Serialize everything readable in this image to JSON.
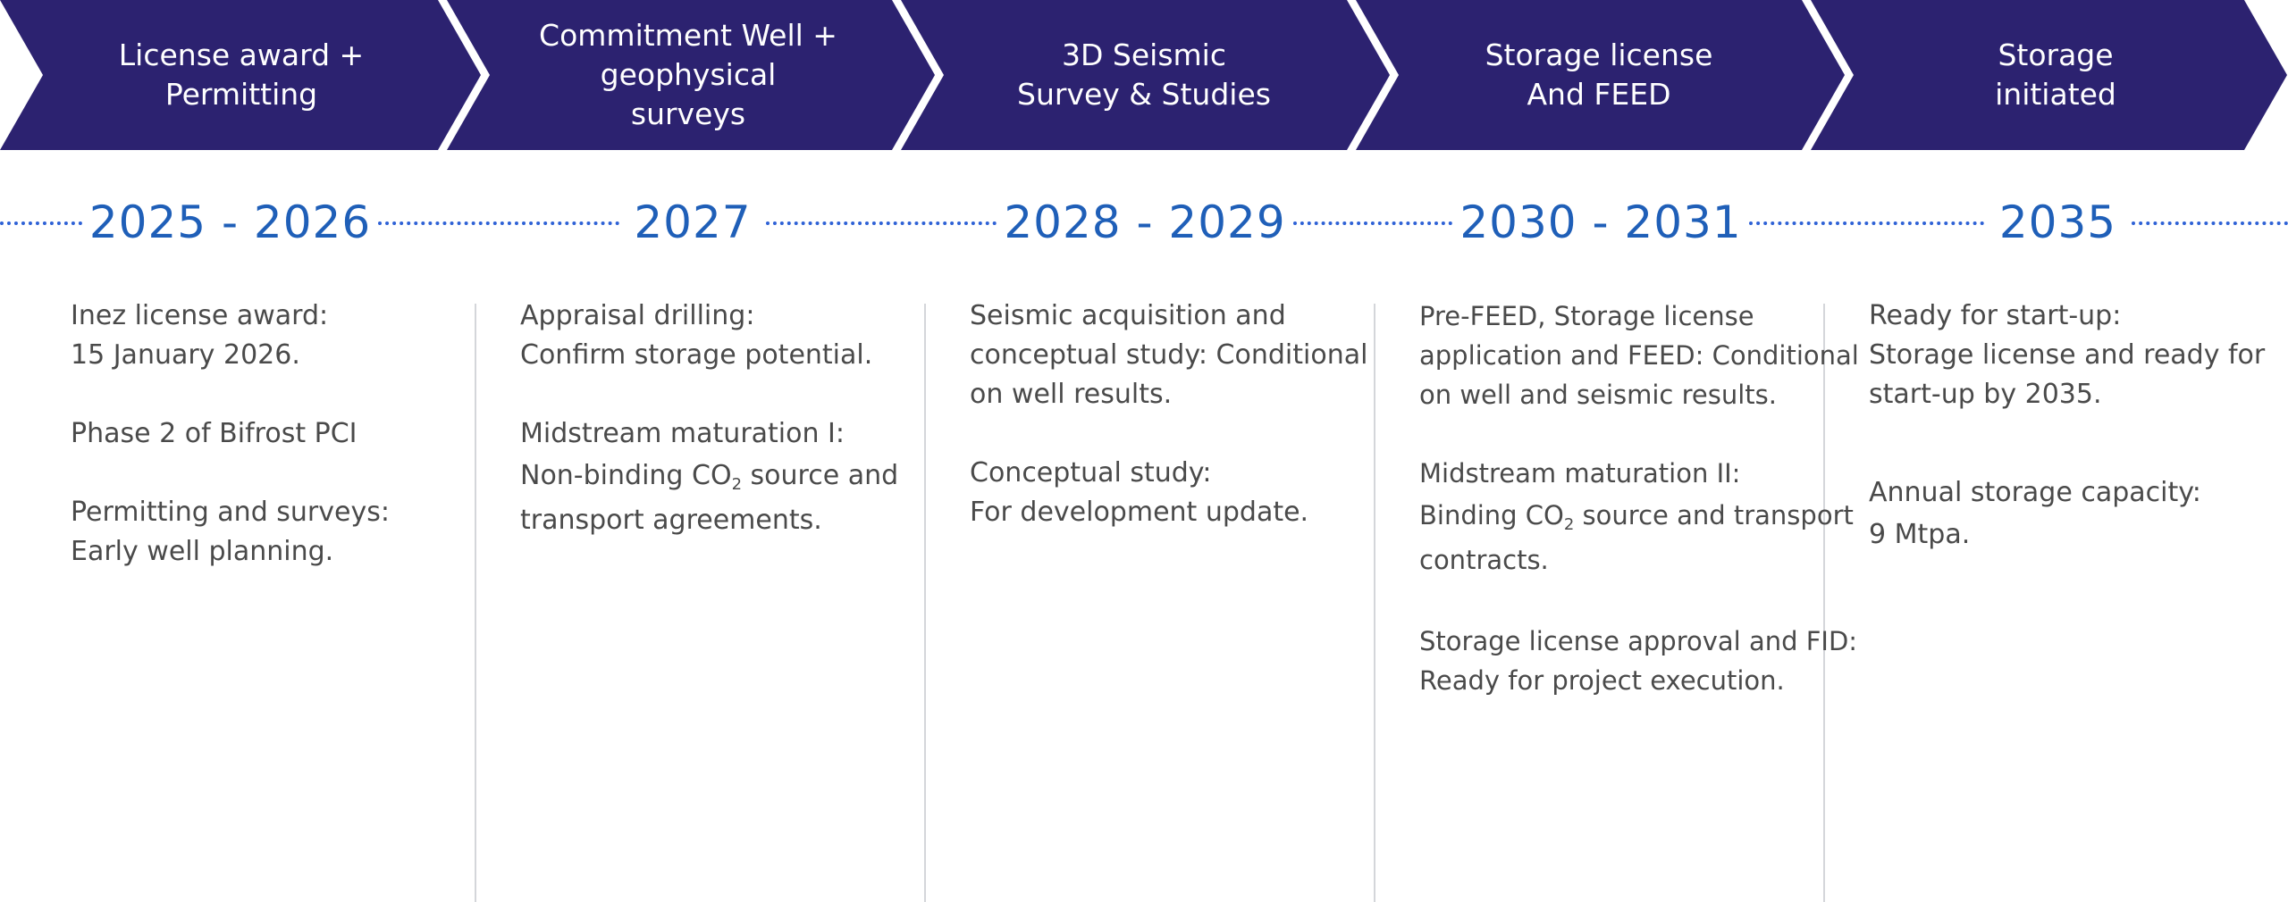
{
  "header_color": "#2c2270",
  "accent_color": "#1f5fb8",
  "stages": [
    {
      "label": "License award + Permitting"
    },
    {
      "label": "Commitment Well +\ngeophysical\nsurveys"
    },
    {
      "label": "3D Seismic\nSurvey & Studies"
    },
    {
      "label": "Storage license\nAnd FEED"
    },
    {
      "label": "Storage\ninitiated"
    }
  ],
  "years": [
    "2025 - 2026",
    "2027",
    "2028 - 2029",
    "2030 - 2031",
    "2035"
  ],
  "details": {
    "c1": {
      "p1_l1": "Inez license award:",
      "p1_l2": "15 January 2026.",
      "p2_l1": "Phase 2 of Bifrost PCI",
      "p3_l1": "Permitting and surveys:",
      "p3_l2": "Early well planning."
    },
    "c2": {
      "p1_l1": "Appraisal drilling:",
      "p1_l2": "Confirm storage potential.",
      "p2_l1": "Midstream maturation I:",
      "p2_l2_pre": "Non-binding CO",
      "p2_l2_sub": "2",
      "p2_l2_post": " source and",
      "p2_l3": "transport agreements."
    },
    "c3": {
      "p1_l1": "Seismic acquisition and",
      "p1_l2": "conceptual study:  Conditional",
      "p1_l3": "on well results.",
      "p2_l1": "Conceptual study:",
      "p2_l2": "For development update."
    },
    "c4": {
      "p1_l1": "Pre-FEED, Storage license",
      "p1_l2": "application and FEED: Conditional",
      "p1_l3": "on well and seismic results.",
      "p2_l1": "Midstream maturation II:",
      "p2_l2_pre": "Binding CO",
      "p2_l2_sub": "2",
      "p2_l2_post": " source and transport",
      "p2_l3": "contracts.",
      "p3_l1": "Storage license approval and FID:",
      "p3_l2": "Ready for project execution."
    },
    "c5": {
      "p1_l1": "Ready for start-up:",
      "p1_l2": "Storage license and ready for",
      "p1_l3": "start-up by 2035.",
      "p2_l1": "Annual storage capacity:",
      "p2_l2": "9 Mtpa."
    }
  }
}
